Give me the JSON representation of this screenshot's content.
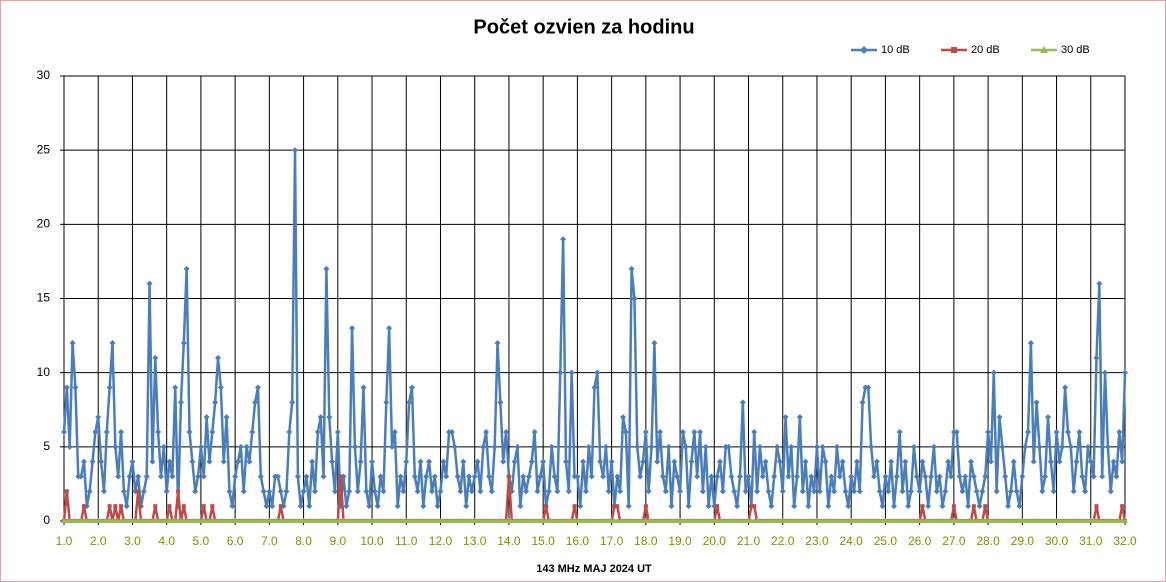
{
  "chart_data": {
    "type": "line",
    "title": "Počet ozvien za hodinu",
    "x_label": "143 MHz  MAJ  2024  UT",
    "xlim": [
      1,
      32
    ],
    "xticks": [
      {
        "value": 1,
        "label": "1.0"
      },
      {
        "value": 2,
        "label": "2.0"
      },
      {
        "value": 3,
        "label": "3.0"
      },
      {
        "value": 4,
        "label": "4.0"
      },
      {
        "value": 5,
        "label": "5.0"
      },
      {
        "value": 6,
        "label": "6.0"
      },
      {
        "value": 7,
        "label": "7.0"
      },
      {
        "value": 8,
        "label": "8.0"
      },
      {
        "value": 9,
        "label": "9.0"
      },
      {
        "value": 10,
        "label": "10.0"
      },
      {
        "value": 11,
        "label": "11.0"
      },
      {
        "value": 12,
        "label": "12.0"
      },
      {
        "value": 13,
        "label": "13.0"
      },
      {
        "value": 14,
        "label": "14.0"
      },
      {
        "value": 15,
        "label": "15.0"
      },
      {
        "value": 16,
        "label": "16.0"
      },
      {
        "value": 17,
        "label": "17.0"
      },
      {
        "value": 18,
        "label": "18.0"
      },
      {
        "value": 19,
        "label": "19.0"
      },
      {
        "value": 20,
        "label": "20.0"
      },
      {
        "value": 21,
        "label": "21.0"
      },
      {
        "value": 22,
        "label": "22.0"
      },
      {
        "value": 23,
        "label": "23.0"
      },
      {
        "value": 24,
        "label": "24.0"
      },
      {
        "value": 25,
        "label": "25.0"
      },
      {
        "value": 26,
        "label": "26.0"
      },
      {
        "value": 27,
        "label": "27.0"
      },
      {
        "value": 28,
        "label": "28.0"
      },
      {
        "value": 29,
        "label": "29.0"
      },
      {
        "value": 30,
        "label": "30.0"
      },
      {
        "value": 31,
        "label": "31.0"
      },
      {
        "value": 32,
        "label": "32.0"
      }
    ],
    "ylim": [
      0,
      30
    ],
    "yticks": [
      0,
      5,
      10,
      15,
      20,
      25,
      30
    ],
    "grid": true,
    "legend": "top-right",
    "series": [
      {
        "name": "10 dB",
        "color": "#4a7ebb",
        "marker": "diamond",
        "values": [
          6,
          9,
          5,
          12,
          9,
          3,
          3,
          4,
          1,
          2,
          4,
          6,
          7,
          4,
          2,
          6,
          9,
          12,
          5,
          3,
          6,
          2,
          1,
          3,
          4,
          2,
          3,
          1,
          2,
          3,
          16,
          4,
          11,
          6,
          3,
          5,
          2,
          4,
          3,
          9,
          1,
          8,
          12,
          17,
          6,
          4,
          2,
          3,
          5,
          3,
          7,
          4,
          6,
          8,
          11,
          9,
          4,
          7,
          2,
          1,
          3,
          4,
          5,
          2,
          5,
          4,
          6,
          8,
          9,
          3,
          2,
          1,
          2,
          1,
          3,
          3,
          2,
          1,
          2,
          6,
          8,
          25,
          3,
          1,
          2,
          3,
          1,
          4,
          2,
          6,
          7,
          3,
          17,
          7,
          4,
          2,
          6,
          1,
          3,
          1,
          2,
          13,
          5,
          2,
          4,
          9,
          2,
          1,
          4,
          2,
          1,
          3,
          2,
          8,
          13,
          5,
          6,
          1,
          3,
          2,
          4,
          8,
          9,
          3,
          2,
          4,
          1,
          3,
          4,
          2,
          3,
          1,
          2,
          4,
          3,
          6,
          6,
          5,
          3,
          2,
          4,
          1,
          3,
          2,
          3,
          4,
          2,
          5,
          6,
          3,
          2,
          5,
          12,
          8,
          4,
          6,
          3,
          2,
          4,
          5,
          1,
          3,
          2,
          3,
          4,
          6,
          2,
          3,
          4,
          1,
          2,
          5,
          3,
          2,
          10,
          19,
          4,
          2,
          10,
          3,
          3,
          1,
          4,
          2,
          5,
          3,
          9,
          10,
          4,
          3,
          5,
          2,
          4,
          1,
          3,
          2,
          7,
          6,
          1,
          17,
          15,
          5,
          3,
          4,
          6,
          2,
          5,
          12,
          4,
          6,
          3,
          2,
          5,
          1,
          4,
          3,
          2,
          6,
          5,
          1,
          4,
          6,
          3,
          6,
          2,
          5,
          1,
          3,
          1,
          3,
          4,
          2,
          5,
          5,
          3,
          2,
          1,
          3,
          8,
          2,
          3,
          1,
          6,
          2,
          5,
          3,
          4,
          2,
          1,
          3,
          5,
          4,
          2,
          7,
          3,
          5,
          1,
          3,
          7,
          2,
          4,
          1,
          3,
          2,
          5,
          2,
          5,
          4,
          1,
          3,
          2,
          5,
          3,
          4,
          2,
          1,
          3,
          2,
          4,
          2,
          8,
          9,
          9,
          5,
          3,
          4,
          2,
          1,
          3,
          2,
          4,
          1,
          3,
          6,
          2,
          4,
          1,
          2,
          5,
          3,
          2,
          4,
          3,
          1,
          3,
          5,
          2,
          3,
          1,
          2,
          4,
          3,
          6,
          6,
          3,
          2,
          3,
          1,
          4,
          3,
          2,
          1,
          2,
          3,
          6,
          4,
          10,
          2,
          7,
          5,
          3,
          1,
          2,
          4,
          2,
          1,
          3,
          5,
          6,
          12,
          4,
          8,
          5,
          2,
          3,
          7,
          4,
          2,
          6,
          4,
          5,
          9,
          6,
          5,
          2,
          4,
          6,
          3,
          2,
          5,
          4,
          3,
          11,
          16,
          3,
          10,
          5,
          2,
          4,
          3,
          6,
          4,
          10
        ]
      },
      {
        "name": "20 dB",
        "color": "#be4b48",
        "marker": "square",
        "values": [
          0,
          2,
          0,
          0,
          0,
          0,
          0,
          1,
          0,
          0,
          0,
          0,
          0,
          0,
          0,
          0,
          1,
          0,
          1,
          0,
          1,
          0,
          0,
          0,
          0,
          0,
          2,
          0,
          0,
          0,
          0,
          0,
          1,
          0,
          0,
          0,
          0,
          1,
          0,
          0,
          2,
          0,
          1,
          0,
          0,
          0,
          0,
          0,
          0,
          1,
          0,
          0,
          1,
          0,
          0,
          0,
          0,
          0,
          0,
          0,
          0,
          0,
          0,
          0,
          0,
          0,
          0,
          0,
          0,
          0,
          0,
          0,
          0,
          0,
          0,
          0,
          1,
          0,
          0,
          0,
          0,
          0,
          0,
          0,
          0,
          0,
          0,
          0,
          0,
          0,
          0,
          0,
          0,
          0,
          0,
          0,
          0,
          3,
          0,
          0,
          0,
          0,
          0,
          0,
          0,
          0,
          0,
          0,
          0,
          0,
          0,
          0,
          0,
          0,
          0,
          0,
          0,
          0,
          0,
          0,
          0,
          0,
          0,
          0,
          0,
          0,
          0,
          0,
          0,
          0,
          0,
          0,
          0,
          0,
          0,
          0,
          0,
          0,
          0,
          0,
          0,
          0,
          0,
          0,
          0,
          0,
          0,
          0,
          0,
          0,
          0,
          0,
          0,
          0,
          0,
          0,
          3,
          0,
          0,
          0,
          0,
          0,
          0,
          0,
          0,
          0,
          0,
          0,
          0,
          1,
          0,
          0,
          0,
          0,
          0,
          0,
          0,
          0,
          0,
          1,
          0,
          0,
          0,
          0,
          0,
          0,
          0,
          0,
          0,
          0,
          0,
          0,
          0,
          1,
          1,
          0,
          0,
          0,
          0,
          0,
          0,
          0,
          0,
          0,
          1,
          0,
          0,
          0,
          0,
          0,
          0,
          0,
          0,
          0,
          0,
          0,
          0,
          0,
          0,
          0,
          0,
          0,
          0,
          0,
          0,
          0,
          0,
          0,
          0,
          1,
          0,
          0,
          0,
          0,
          0,
          0,
          0,
          0,
          0,
          0,
          0,
          1,
          1,
          0,
          0,
          0,
          0,
          0,
          0,
          0,
          0,
          0,
          0,
          0,
          0,
          0,
          0,
          0,
          0,
          0,
          0,
          0,
          0,
          0,
          0,
          0,
          0,
          0,
          0,
          0,
          0,
          0,
          0,
          0,
          0,
          0,
          0,
          0,
          0,
          0,
          0,
          0,
          0,
          0,
          0,
          0,
          0,
          0,
          0,
          0,
          0,
          0,
          0,
          0,
          0,
          0,
          0,
          0,
          0,
          0,
          0,
          1,
          0,
          0,
          0,
          0,
          0,
          0,
          0,
          0,
          0,
          0,
          1,
          0,
          0,
          0,
          0,
          0,
          0,
          1,
          0,
          0,
          0,
          1,
          0,
          0,
          0,
          0,
          0,
          0,
          0,
          0,
          0,
          0,
          0,
          0,
          0,
          0,
          0,
          0,
          0,
          0,
          0,
          0,
          0,
          0,
          0,
          0,
          0,
          0,
          0,
          0,
          0,
          0,
          0,
          0,
          0,
          0,
          0,
          0,
          0,
          0,
          1,
          0,
          0,
          0,
          0,
          0,
          0,
          0,
          0,
          1,
          0
        ]
      },
      {
        "name": "30 dB",
        "color": "#98b954",
        "marker": "triangle",
        "values": [
          0,
          0,
          0,
          0,
          0,
          0,
          0,
          0,
          0,
          0,
          0,
          0,
          0,
          0,
          0,
          0,
          0,
          0,
          0,
          0,
          0,
          0,
          0,
          0,
          0,
          0,
          0,
          0,
          0,
          0,
          0,
          0,
          0,
          0,
          0,
          0,
          0,
          0,
          0,
          0,
          0,
          0,
          0,
          0,
          0,
          0,
          0,
          0,
          0,
          0,
          0,
          0,
          0,
          0,
          0,
          0,
          0,
          0,
          0,
          0,
          0,
          0,
          0,
          0,
          0,
          0,
          0,
          0,
          0,
          0,
          0,
          0,
          0,
          0,
          0,
          0,
          0,
          0,
          0,
          0,
          0,
          0,
          0,
          0,
          0,
          0,
          0,
          0,
          0,
          0,
          0,
          0,
          0,
          0,
          0,
          0,
          0,
          0,
          0,
          0,
          0,
          0,
          0,
          0,
          0,
          0,
          0,
          0,
          0,
          0,
          0,
          0,
          0,
          0,
          0,
          0,
          0,
          0,
          0,
          0,
          0,
          0,
          0,
          0,
          0,
          0,
          0,
          0,
          0,
          0,
          0,
          0,
          0,
          0,
          0,
          0,
          0,
          0,
          0,
          0,
          0,
          0,
          0,
          0,
          0,
          0,
          0,
          0,
          0,
          0,
          0,
          0,
          0,
          0,
          0,
          0,
          0,
          0,
          0,
          0,
          0,
          0,
          0,
          0,
          0,
          0,
          0,
          0,
          0,
          0,
          0,
          0,
          0,
          0,
          0,
          0,
          0,
          0,
          0,
          0,
          0,
          0,
          0,
          0,
          0,
          0,
          0,
          0,
          0,
          0,
          0,
          0,
          0,
          0,
          0,
          0,
          0,
          0,
          0,
          0,
          0,
          0,
          0,
          0,
          0,
          0,
          0,
          0,
          0,
          0,
          0,
          0,
          0,
          0,
          0,
          0,
          0,
          0,
          0,
          0,
          0,
          0,
          0,
          0,
          0,
          0,
          0,
          0,
          0,
          0,
          0,
          0,
          0,
          0,
          0,
          0,
          0,
          0,
          0,
          0,
          0,
          0,
          0,
          0,
          0,
          0,
          0,
          0,
          0,
          0,
          0,
          0,
          0,
          0,
          0,
          0,
          0,
          0,
          0,
          0,
          0,
          0,
          0,
          0,
          0,
          0,
          0,
          0,
          0,
          0,
          0,
          0,
          0,
          0,
          0,
          0,
          0,
          0,
          0,
          0,
          0,
          0,
          0,
          0,
          0,
          0,
          0,
          0,
          0,
          0,
          0,
          0,
          0,
          0,
          0,
          0,
          0,
          0,
          0,
          0,
          0,
          0,
          0,
          0,
          0,
          0,
          0,
          0,
          0,
          0,
          0,
          0,
          0,
          0,
          0,
          0,
          0,
          0,
          0,
          0,
          0,
          0,
          0,
          0,
          0,
          0,
          0,
          0,
          0,
          0,
          0,
          0,
          0,
          0,
          0,
          0,
          0,
          0,
          0,
          0,
          0,
          0,
          0,
          0,
          0,
          0,
          0,
          0,
          0,
          0,
          0,
          0,
          0,
          0,
          0,
          0,
          0,
          0,
          0,
          0,
          0,
          0,
          0,
          0,
          0,
          0,
          0,
          0,
          0,
          0,
          0,
          0,
          0
        ]
      }
    ]
  }
}
